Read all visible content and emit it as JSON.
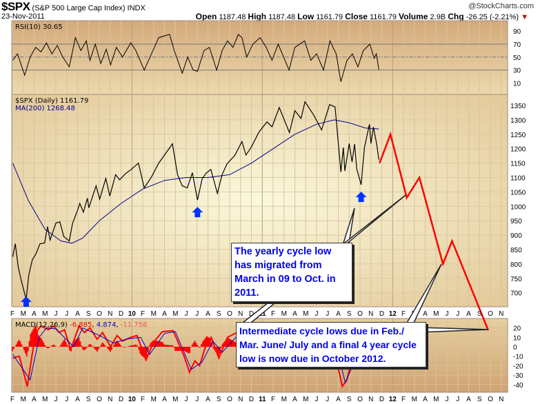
{
  "header": {
    "symbol": "$SPX",
    "name": "(S&P 500 Large Cap Index) INDX",
    "date": "23-Nov-2011",
    "copyright": "@StockCharts.com",
    "open_label": "Open",
    "open": "1187.48",
    "high_label": "High",
    "high": "1187.48",
    "low_label": "Low",
    "low": "1161.79",
    "close_label": "Close",
    "close": "1161.79",
    "volume_label": "Volume",
    "volume": "2.9B",
    "chg_label": "Chg",
    "chg": "-26.25 (-2.21%)"
  },
  "annotations": {
    "yearly": "The yearly cycle low has migrated from March in 09 to Oct. in 2011.",
    "intermediate": "Intermediate cycle lows due in Feb./ Mar. June/ July and a final 4 year cycle low is now due in October 2012."
  },
  "colors": {
    "price": "#000000",
    "ma": "#00008b",
    "projection": "#ff0000",
    "macd": "#ff0000",
    "signal": "#0000cc",
    "arrow": "#0033ff",
    "note_text": "#0000ee"
  },
  "chart_data": [
    {
      "type": "line",
      "title": "RSI(10) 30.65",
      "ylim": [
        0,
        100
      ],
      "yticks": [
        90,
        70,
        50,
        30,
        10
      ],
      "reference_lines": [
        70,
        50,
        30
      ],
      "values": [
        [
          "2009-02-02",
          45
        ],
        [
          "2009-02-15",
          55
        ],
        [
          "2009-03-05",
          22
        ],
        [
          "2009-03-20",
          50
        ],
        [
          "2009-04-05",
          65
        ],
        [
          "2009-04-20",
          58
        ],
        [
          "2009-05-05",
          72
        ],
        [
          "2009-05-20",
          55
        ],
        [
          "2009-06-05",
          68
        ],
        [
          "2009-06-20",
          50
        ],
        [
          "2009-07-08",
          35
        ],
        [
          "2009-07-25",
          80
        ],
        [
          "2009-08-10",
          60
        ],
        [
          "2009-08-25",
          75
        ],
        [
          "2009-09-05",
          45
        ],
        [
          "2009-09-20",
          70
        ],
        [
          "2009-10-05",
          40
        ],
        [
          "2009-10-20",
          62
        ],
        [
          "2009-11-02",
          38
        ],
        [
          "2009-11-18",
          65
        ],
        [
          "2009-12-05",
          50
        ],
        [
          "2009-12-28",
          72
        ],
        [
          "2010-01-12",
          60
        ],
        [
          "2010-02-05",
          30
        ],
        [
          "2010-02-25",
          55
        ],
        [
          "2010-03-15",
          80
        ],
        [
          "2010-04-15",
          85
        ],
        [
          "2010-04-28",
          60
        ],
        [
          "2010-05-20",
          25
        ],
        [
          "2010-06-05",
          50
        ],
        [
          "2010-06-20",
          30
        ],
        [
          "2010-07-02",
          28
        ],
        [
          "2010-07-20",
          60
        ],
        [
          "2010-08-05",
          65
        ],
        [
          "2010-08-25",
          30
        ],
        [
          "2010-09-10",
          60
        ],
        [
          "2010-09-25",
          75
        ],
        [
          "2010-10-10",
          65
        ],
        [
          "2010-10-25",
          85
        ],
        [
          "2010-11-05",
          80
        ],
        [
          "2010-11-18",
          50
        ],
        [
          "2010-12-05",
          70
        ],
        [
          "2010-12-25",
          80
        ],
        [
          "2011-01-12",
          65
        ],
        [
          "2011-01-28",
          45
        ],
        [
          "2011-02-15",
          70
        ],
        [
          "2011-03-15",
          30
        ],
        [
          "2011-04-01",
          65
        ],
        [
          "2011-04-28",
          75
        ],
        [
          "2011-05-15",
          45
        ],
        [
          "2011-06-01",
          55
        ],
        [
          "2011-06-20",
          30
        ],
        [
          "2011-07-08",
          75
        ],
        [
          "2011-07-25",
          55
        ],
        [
          "2011-08-08",
          12
        ],
        [
          "2011-08-25",
          45
        ],
        [
          "2011-09-10",
          55
        ],
        [
          "2011-09-25",
          35
        ],
        [
          "2011-10-10",
          60
        ],
        [
          "2011-10-28",
          70
        ],
        [
          "2011-11-10",
          48
        ],
        [
          "2011-11-16",
          55
        ],
        [
          "2011-11-23",
          30.65
        ]
      ]
    },
    {
      "type": "line",
      "title": "$SPX (Daily) 1161.79",
      "ma_label": "MA(200) 1268.48",
      "ylim": [
        650,
        1380
      ],
      "yticks": [
        1350,
        1300,
        1250,
        1200,
        1150,
        1100,
        1050,
        1000,
        950,
        900,
        850,
        800,
        750,
        700
      ],
      "xticks": [
        "F",
        "M",
        "A",
        "M",
        "J",
        "J",
        "A",
        "S",
        "O",
        "N",
        "D",
        "10",
        "F",
        "M",
        "A",
        "M",
        "J",
        "J",
        "A",
        "S",
        "O",
        "N",
        "D",
        "11",
        "F",
        "M",
        "A",
        "M",
        "J",
        "J",
        "A",
        "S",
        "O",
        "N",
        "D",
        "12",
        "F",
        "M",
        "A",
        "M",
        "J",
        "J",
        "A",
        "S",
        "O",
        "N"
      ],
      "price": [
        [
          "2009-02-02",
          825
        ],
        [
          "2009-02-09",
          870
        ],
        [
          "2009-02-17",
          790
        ],
        [
          "2009-02-27",
          735
        ],
        [
          "2009-03-09",
          677
        ],
        [
          "2009-03-16",
          760
        ],
        [
          "2009-03-26",
          815
        ],
        [
          "2009-04-06",
          835
        ],
        [
          "2009-04-17",
          870
        ],
        [
          "2009-04-30",
          873
        ],
        [
          "2009-05-08",
          930
        ],
        [
          "2009-05-15",
          883
        ],
        [
          "2009-06-01",
          942
        ],
        [
          "2009-06-12",
          946
        ],
        [
          "2009-06-23",
          895
        ],
        [
          "2009-07-08",
          880
        ],
        [
          "2009-07-17",
          940
        ],
        [
          "2009-07-31",
          987
        ],
        [
          "2009-08-07",
          1010
        ],
        [
          "2009-08-17",
          980
        ],
        [
          "2009-08-28",
          1028
        ],
        [
          "2009-09-02",
          995
        ],
        [
          "2009-09-22",
          1071
        ],
        [
          "2009-10-02",
          1025
        ],
        [
          "2009-10-19",
          1097
        ],
        [
          "2009-10-30",
          1036
        ],
        [
          "2009-11-16",
          1110
        ],
        [
          "2009-11-27",
          1092
        ],
        [
          "2009-12-14",
          1114
        ],
        [
          "2009-12-28",
          1127
        ],
        [
          "2010-01-19",
          1150
        ],
        [
          "2010-02-05",
          1064
        ],
        [
          "2010-02-25",
          1102
        ],
        [
          "2010-03-15",
          1150
        ],
        [
          "2010-04-01",
          1178
        ],
        [
          "2010-04-23",
          1217
        ],
        [
          "2010-05-07",
          1110
        ],
        [
          "2010-05-20",
          1071
        ],
        [
          "2010-06-04",
          1064
        ],
        [
          "2010-06-18",
          1117
        ],
        [
          "2010-07-02",
          1022
        ],
        [
          "2010-07-15",
          1096
        ],
        [
          "2010-07-26",
          1115
        ],
        [
          "2010-08-09",
          1128
        ],
        [
          "2010-08-27",
          1045
        ],
        [
          "2010-09-10",
          1110
        ],
        [
          "2010-09-24",
          1148
        ],
        [
          "2010-10-15",
          1176
        ],
        [
          "2010-11-05",
          1225
        ],
        [
          "2010-11-16",
          1178
        ],
        [
          "2010-12-01",
          1206
        ],
        [
          "2010-12-22",
          1258
        ],
        [
          "2011-01-14",
          1293
        ],
        [
          "2011-01-28",
          1276
        ],
        [
          "2011-02-18",
          1343
        ],
        [
          "2011-03-16",
          1256
        ],
        [
          "2011-04-01",
          1332
        ],
        [
          "2011-04-18",
          1305
        ],
        [
          "2011-04-29",
          1363
        ],
        [
          "2011-05-23",
          1317
        ],
        [
          "2011-06-15",
          1265
        ],
        [
          "2011-07-07",
          1353
        ],
        [
          "2011-07-22",
          1345
        ],
        [
          "2011-08-08",
          1119
        ],
        [
          "2011-08-15",
          1204
        ],
        [
          "2011-08-19",
          1123
        ],
        [
          "2011-08-31",
          1218
        ],
        [
          "2011-09-09",
          1154
        ],
        [
          "2011-09-16",
          1216
        ],
        [
          "2011-09-22",
          1129
        ],
        [
          "2011-10-04",
          1075
        ],
        [
          "2011-10-13",
          1203
        ],
        [
          "2011-10-27",
          1285
        ],
        [
          "2011-11-01",
          1218
        ],
        [
          "2011-11-08",
          1275
        ],
        [
          "2011-11-17",
          1216
        ],
        [
          "2011-11-23",
          1161.79
        ]
      ],
      "ma200": [
        [
          "2009-02-02",
          1150
        ],
        [
          "2009-03-15",
          1020
        ],
        [
          "2009-05-01",
          920
        ],
        [
          "2009-06-15",
          880
        ],
        [
          "2009-07-15",
          872
        ],
        [
          "2009-08-15",
          890
        ],
        [
          "2009-10-01",
          950
        ],
        [
          "2009-12-01",
          1010
        ],
        [
          "2010-02-01",
          1060
        ],
        [
          "2010-04-01",
          1090
        ],
        [
          "2010-06-01",
          1100
        ],
        [
          "2010-08-01",
          1100
        ],
        [
          "2010-10-01",
          1110
        ],
        [
          "2010-12-01",
          1150
        ],
        [
          "2011-02-01",
          1200
        ],
        [
          "2011-04-01",
          1250
        ],
        [
          "2011-06-01",
          1285
        ],
        [
          "2011-07-20",
          1300
        ],
        [
          "2011-09-01",
          1290
        ],
        [
          "2011-10-15",
          1272
        ],
        [
          "2011-11-23",
          1268.48
        ]
      ],
      "projection": [
        [
          "2011-11-25",
          1150
        ],
        [
          "2011-12-25",
          1250
        ],
        [
          "2012-02-10",
          1030
        ],
        [
          "2012-03-15",
          1100
        ],
        [
          "2012-05-20",
          800
        ],
        [
          "2012-06-15",
          880
        ],
        [
          "2012-09-25",
          570
        ]
      ],
      "cycle_low_arrows": [
        "2009-03-09",
        "2010-07-02",
        "2011-10-04"
      ]
    },
    {
      "type": "line",
      "title": "MACD(12,26,9)",
      "legend_values": [
        "-6.885",
        "4.874",
        "-11.758"
      ],
      "ylim": [
        -48,
        30
      ],
      "yticks": [
        20,
        10,
        0,
        -10,
        -20,
        -30,
        -40
      ],
      "macd": [
        [
          "2009-02-02",
          -12
        ],
        [
          "2009-02-20",
          -10
        ],
        [
          "2009-03-12",
          -42
        ],
        [
          "2009-04-05",
          15
        ],
        [
          "2009-04-20",
          22
        ],
        [
          "2009-05-10",
          18
        ],
        [
          "2009-05-25",
          22
        ],
        [
          "2009-06-10",
          15
        ],
        [
          "2009-06-25",
          18
        ],
        [
          "2009-07-12",
          -3
        ],
        [
          "2009-08-05",
          22
        ],
        [
          "2009-08-20",
          15
        ],
        [
          "2009-09-05",
          20
        ],
        [
          "2009-09-25",
          8
        ],
        [
          "2009-10-10",
          15
        ],
        [
          "2009-11-02",
          0
        ],
        [
          "2009-11-20",
          12
        ],
        [
          "2009-12-05",
          6
        ],
        [
          "2009-12-28",
          10
        ],
        [
          "2010-01-15",
          12
        ],
        [
          "2010-02-10",
          -14
        ],
        [
          "2010-03-01",
          5
        ],
        [
          "2010-03-25",
          16
        ],
        [
          "2010-04-25",
          17
        ],
        [
          "2010-05-25",
          -10
        ],
        [
          "2010-06-10",
          -27
        ],
        [
          "2010-06-25",
          -15
        ],
        [
          "2010-07-08",
          -20
        ],
        [
          "2010-07-28",
          5
        ],
        [
          "2010-08-10",
          10
        ],
        [
          "2010-09-01",
          -12
        ],
        [
          "2010-09-25",
          10
        ],
        [
          "2010-10-20",
          15
        ],
        [
          "2010-11-10",
          17
        ],
        [
          "2010-12-10",
          15
        ],
        [
          "2011-01-15",
          16
        ],
        [
          "2011-02-20",
          18
        ],
        [
          "2011-03-18",
          0
        ],
        [
          "2011-04-25",
          8
        ],
        [
          "2011-05-20",
          5
        ],
        [
          "2011-06-20",
          -15
        ],
        [
          "2011-07-15",
          5
        ],
        [
          "2011-08-12",
          -42
        ],
        [
          "2011-08-25",
          -35
        ],
        [
          "2011-09-10",
          -10
        ],
        [
          "2011-09-28",
          -18
        ],
        [
          "2011-10-28",
          15
        ],
        [
          "2011-11-23",
          -6.885
        ]
      ],
      "signal": [
        [
          "2009-02-02",
          -8
        ],
        [
          "2009-03-20",
          -35
        ],
        [
          "2009-04-15",
          10
        ],
        [
          "2009-05-05",
          20
        ],
        [
          "2009-06-01",
          19
        ],
        [
          "2009-07-20",
          0
        ],
        [
          "2009-08-15",
          20
        ],
        [
          "2009-10-01",
          12
        ],
        [
          "2009-11-10",
          4
        ],
        [
          "2009-12-15",
          8
        ],
        [
          "2010-01-25",
          10
        ],
        [
          "2010-02-20",
          -8
        ],
        [
          "2010-04-01",
          14
        ],
        [
          "2010-05-01",
          16
        ],
        [
          "2010-06-15",
          -24
        ],
        [
          "2010-07-15",
          -16
        ],
        [
          "2010-08-15",
          6
        ],
        [
          "2010-09-10",
          -6
        ],
        [
          "2010-10-25",
          13
        ],
        [
          "2010-12-01",
          15
        ],
        [
          "2011-02-25",
          16
        ],
        [
          "2011-03-28",
          4
        ],
        [
          "2011-05-01",
          6
        ],
        [
          "2011-06-28",
          -10
        ],
        [
          "2011-07-25",
          2
        ],
        [
          "2011-08-20",
          -38
        ],
        [
          "2011-09-15",
          -16
        ],
        [
          "2011-10-05",
          -14
        ],
        [
          "2011-11-05",
          12
        ],
        [
          "2011-11-23",
          4.874
        ]
      ]
    }
  ]
}
